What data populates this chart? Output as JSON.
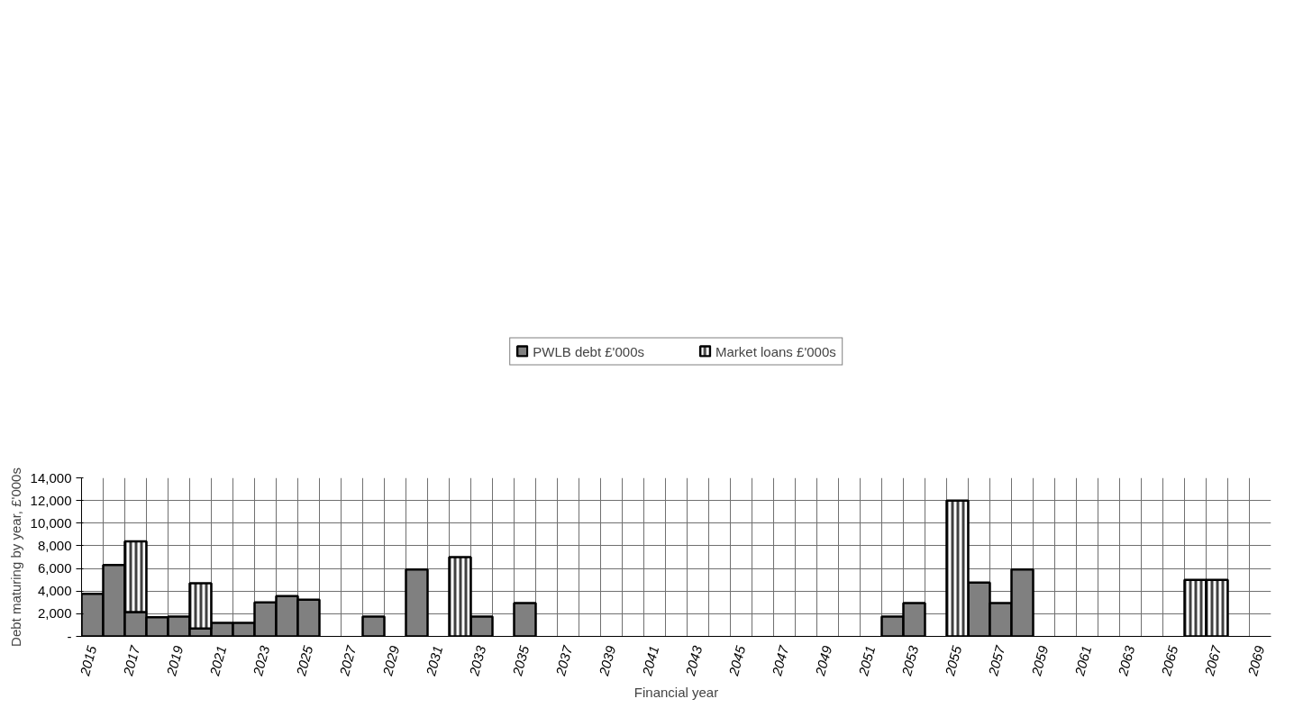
{
  "chart_data": {
    "type": "bar",
    "stacked": true,
    "xlabel": "Financial year",
    "ylabel": "Debt maturing by year, £'000s",
    "categories": [
      "2015",
      null,
      "2017",
      null,
      "2019",
      null,
      "2021",
      null,
      "2023",
      null,
      "2025",
      null,
      "2027",
      null,
      "2029",
      null,
      "2031",
      null,
      "2033",
      null,
      "2035",
      null,
      "2037",
      null,
      "2039",
      null,
      "2041",
      null,
      "2043",
      null,
      "2045",
      null,
      "2047",
      null,
      "2049",
      null,
      "2051",
      null,
      "2053",
      null,
      "2055",
      null,
      "2057",
      null,
      "2059",
      null,
      "2061",
      null,
      "2063",
      null,
      "2065",
      null,
      "2067",
      null,
      "2069"
    ],
    "series": [
      {
        "name": "PWLB debt £'000s",
        "color": "#808080",
        "values": [
          3750,
          6300,
          2150,
          1700,
          1750,
          700,
          1200,
          1200,
          3000,
          3550,
          3250,
          0,
          0,
          1750,
          0,
          5900,
          0,
          0,
          1750,
          0,
          2950,
          0,
          0,
          0,
          0,
          0,
          0,
          0,
          0,
          0,
          0,
          0,
          0,
          0,
          0,
          0,
          0,
          1750,
          2950,
          0,
          0,
          4750,
          2950,
          5900,
          0,
          0,
          0,
          0,
          0,
          0,
          0,
          0,
          0,
          0,
          0
        ]
      },
      {
        "name": "Market loans £'000s",
        "color": "#404040",
        "values": [
          0,
          0,
          6250,
          0,
          0,
          4000,
          0,
          0,
          0,
          0,
          0,
          0,
          0,
          0,
          0,
          0,
          0,
          7000,
          0,
          0,
          0,
          0,
          0,
          0,
          0,
          0,
          0,
          0,
          0,
          0,
          0,
          0,
          0,
          0,
          0,
          0,
          0,
          0,
          0,
          0,
          12000,
          0,
          0,
          0,
          0,
          0,
          0,
          0,
          0,
          0,
          0,
          5000,
          5000,
          0,
          0
        ]
      }
    ],
    "ylim": [
      0,
      14000
    ],
    "yticks": [
      {
        "value": 0,
        "label": "-"
      },
      {
        "value": 2000,
        "label": "2,000"
      },
      {
        "value": 4000,
        "label": "4,000"
      },
      {
        "value": 6000,
        "label": "6,000"
      },
      {
        "value": 8000,
        "label": "8,000"
      },
      {
        "value": 10000,
        "label": "10,000"
      },
      {
        "value": 12000,
        "label": "12,000"
      },
      {
        "value": 14000,
        "label": "14,000"
      }
    ],
    "grid": true,
    "legend": "top"
  }
}
